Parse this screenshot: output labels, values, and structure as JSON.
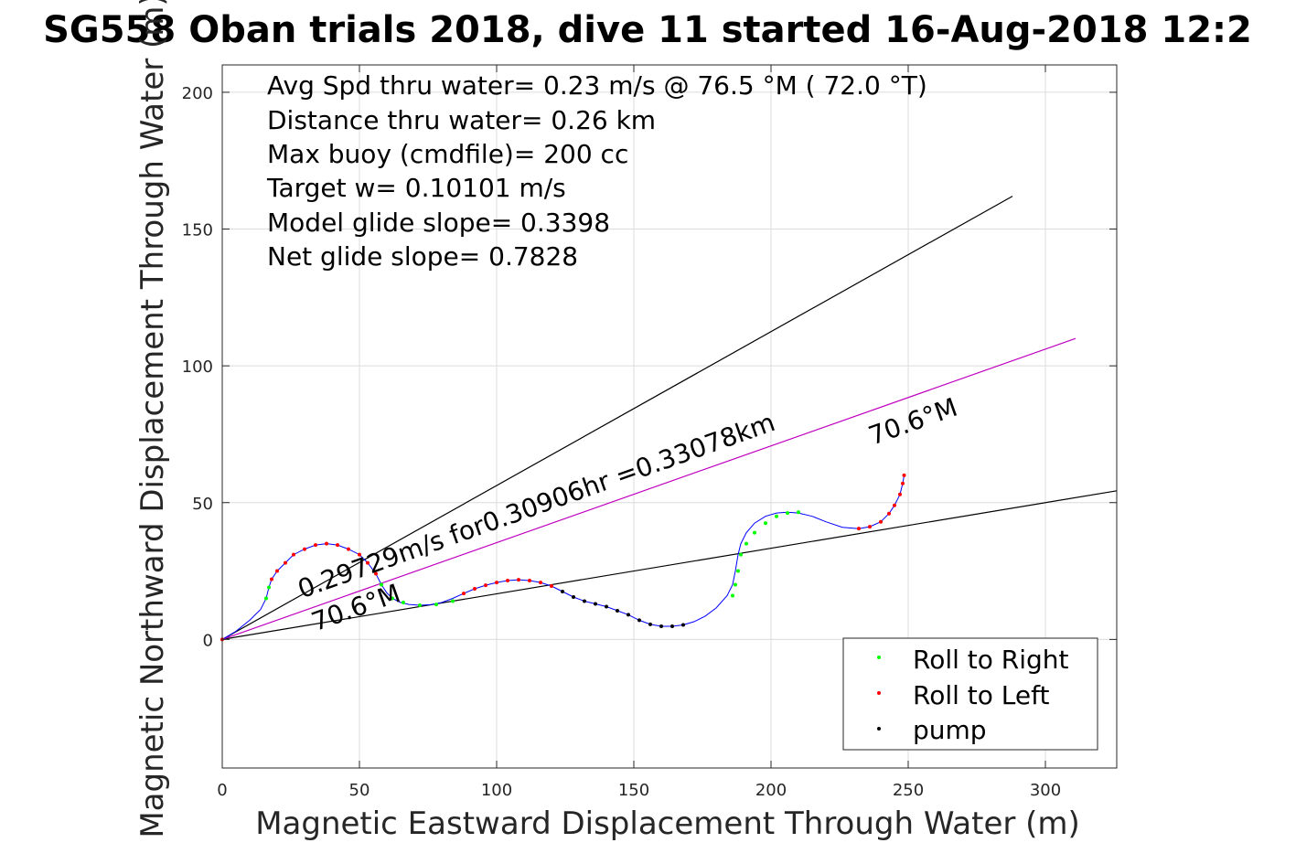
{
  "chart_data": {
    "type": "scatter",
    "title": "SG558 Oban trials 2018, dive 11 started 16-Aug-2018 12:2",
    "xlabel": "Magnetic Eastward Displacement Through Water (m)",
    "ylabel": "Magnetic Northward Displacement Through Water (m)",
    "xlim": [
      0,
      326
    ],
    "ylim": [
      -47,
      210
    ],
    "xticks": [
      0,
      50,
      100,
      150,
      200,
      250,
      300
    ],
    "yticks": [
      0,
      50,
      100,
      150,
      200
    ],
    "xtick_labels": [
      "0",
      "50",
      "100",
      "150",
      "200",
      "250",
      "300"
    ],
    "ytick_labels": [
      "0",
      "50",
      "100",
      "150",
      "200"
    ],
    "grid": true,
    "info_lines": [
      "Avg Spd thru water=  0.23 m/s @  76.5 °M ( 72.0 °T)",
      "Distance thru water=  0.26 km",
      "Max buoy (cmdfile)= 200 cc",
      "Target w= 0.10101 m/s",
      "Model glide slope= 0.3398",
      "Net glide slope= 0.7828"
    ],
    "annotations": [
      {
        "text": "0.29729m/s for0.30906hr =0.33078km",
        "x": 29,
        "y": 15,
        "angle_deg": 19.6
      },
      {
        "text": "70.6°M",
        "x": 34,
        "y": 3,
        "angle_deg": 19.6
      },
      {
        "text": "70.6°M",
        "x": 237,
        "y": 71,
        "angle_deg": 19.6
      }
    ],
    "reference_lines": [
      {
        "name": "upper",
        "x": [
          0,
          288
        ],
        "y": [
          0,
          162
        ],
        "color": "#000000"
      },
      {
        "name": "lower",
        "x": [
          0,
          330
        ],
        "y": [
          0,
          55
        ],
        "color": "#000000"
      },
      {
        "name": "mean",
        "x": [
          0,
          311
        ],
        "y": [
          0,
          110
        ],
        "color": "#bf00bf"
      }
    ],
    "track": {
      "color": "#0000ff",
      "x": [
        0,
        5,
        10,
        14,
        16,
        17,
        18,
        20,
        23,
        26,
        30,
        34,
        38,
        42,
        46,
        50,
        53,
        56,
        58,
        60,
        62,
        65,
        68,
        72,
        76,
        80,
        84,
        88,
        92,
        96,
        100,
        104,
        108,
        112,
        116,
        120,
        124,
        128,
        132,
        136,
        140,
        144,
        148,
        152,
        156,
        160,
        164,
        168,
        172,
        176,
        180,
        184,
        186,
        187,
        188,
        189,
        191,
        194,
        198,
        202,
        206,
        210,
        215,
        220,
        226,
        232,
        236,
        240,
        243,
        245,
        247,
        248,
        248.5
      ],
      "y": [
        0,
        3,
        7,
        11,
        15,
        19,
        22,
        25,
        28,
        31,
        33,
        34.5,
        35,
        34.5,
        33,
        31,
        28,
        24,
        20,
        17,
        15,
        13.5,
        12.8,
        12.5,
        12.7,
        13.5,
        15,
        16.8,
        18.5,
        19.8,
        20.8,
        21.5,
        21.8,
        21.5,
        20.8,
        19.5,
        17.5,
        15.5,
        14,
        13,
        12,
        10.5,
        9,
        7,
        5.5,
        4.8,
        4.8,
        5.3,
        6.5,
        8.5,
        11.5,
        16,
        20,
        25,
        31,
        35,
        39,
        42.5,
        45,
        46.2,
        46.5,
        46.2,
        45,
        43,
        41,
        40.5,
        41.2,
        43,
        46,
        49,
        53,
        57,
        60
      ]
    },
    "series": [
      {
        "name": "Roll to Right",
        "marker_color": "#00ff00",
        "x": [
          16,
          17,
          58,
          62,
          66,
          72,
          78,
          84,
          186,
          187,
          188,
          189,
          191,
          194,
          198,
          202,
          206,
          210
        ],
        "y": [
          15,
          19,
          20,
          15,
          13.5,
          12.5,
          12.8,
          14,
          16,
          20,
          25,
          31,
          35,
          39,
          42.5,
          45,
          46.2,
          46.5
        ]
      },
      {
        "name": "Roll to Left",
        "marker_color": "#ff0000",
        "x": [
          0,
          18,
          20,
          23,
          26,
          30,
          34,
          38,
          42,
          46,
          50,
          53,
          56,
          88,
          92,
          96,
          100,
          104,
          108,
          112,
          116,
          120,
          232,
          236,
          240,
          243,
          245,
          247,
          248,
          248.5
        ],
        "y": [
          0,
          22,
          25,
          28,
          31,
          33,
          34.5,
          35,
          34.5,
          33,
          31,
          28,
          24,
          16.8,
          18.5,
          19.8,
          20.8,
          21.5,
          21.8,
          21.5,
          20.8,
          19.5,
          40.5,
          41.2,
          43,
          46,
          49,
          53,
          57,
          60
        ]
      },
      {
        "name": "pump",
        "marker_color": "#000000",
        "x": [
          124,
          128,
          132,
          136,
          140,
          144,
          148,
          152,
          156,
          160,
          164,
          168
        ],
        "y": [
          17.5,
          15.5,
          14,
          13,
          12,
          10.5,
          9,
          7,
          5.5,
          4.8,
          4.8,
          5.3
        ]
      }
    ],
    "legend": {
      "position": "bottom-right",
      "entries": [
        "Roll to Right",
        "Roll to Left",
        "pump"
      ]
    }
  }
}
